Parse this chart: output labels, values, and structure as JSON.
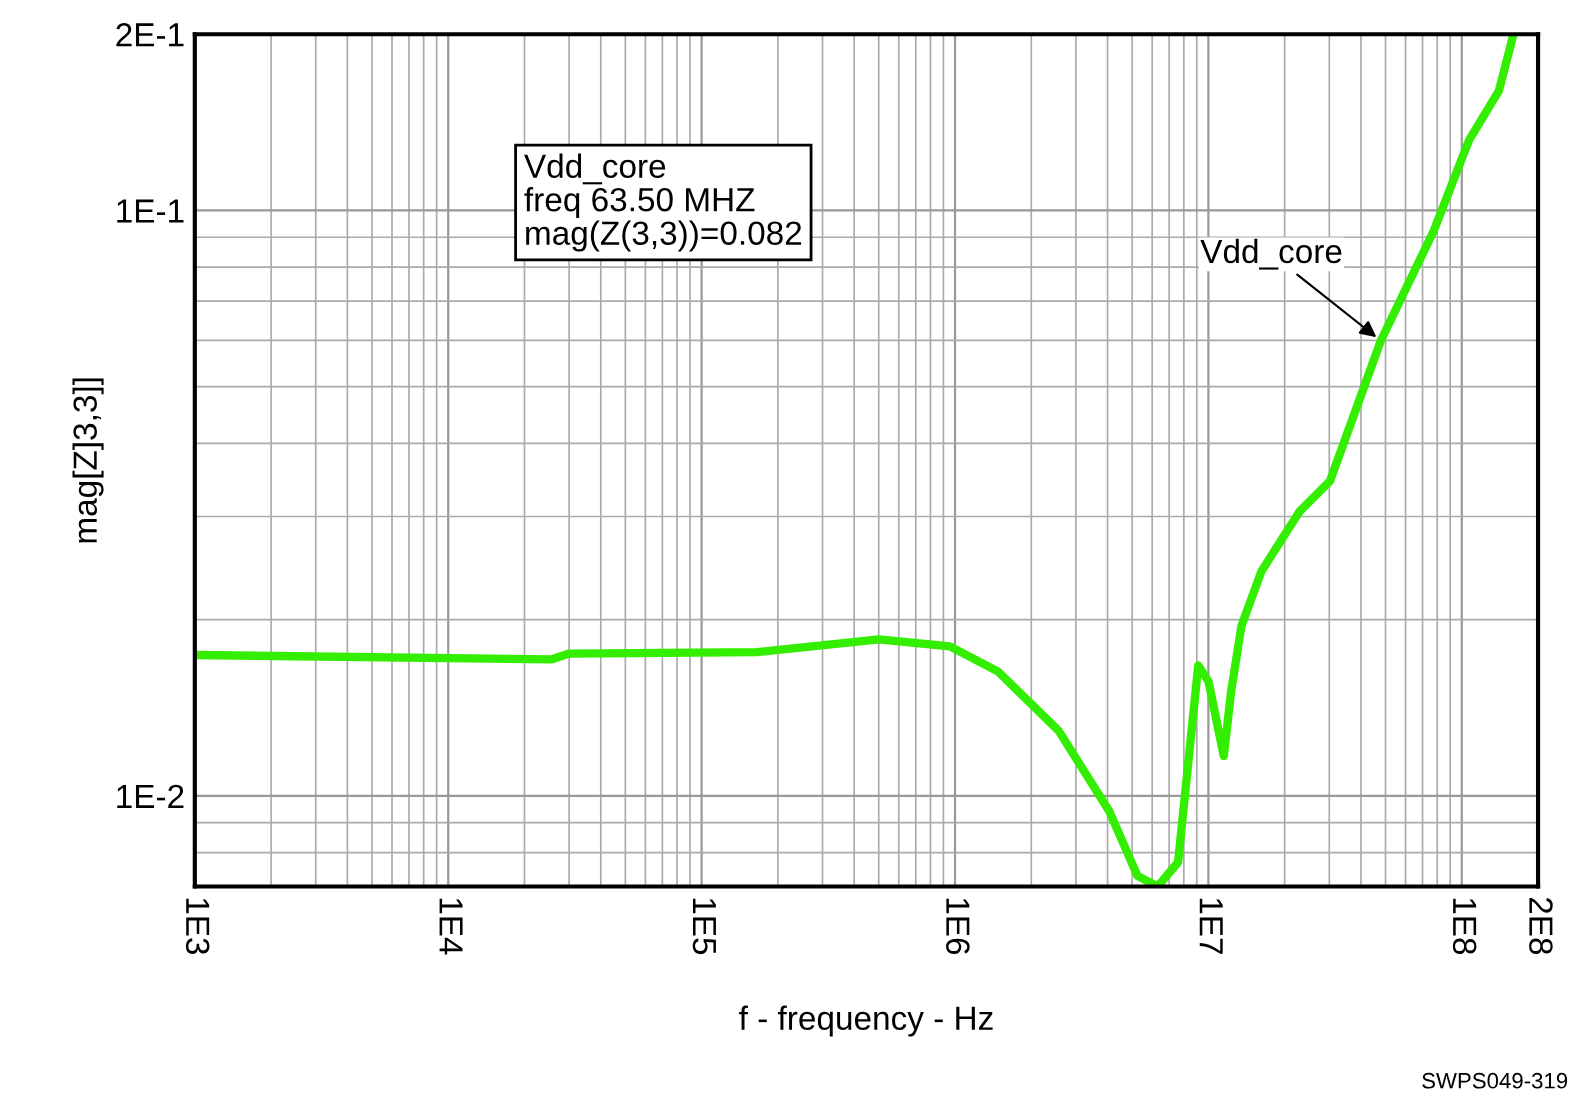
{
  "chart_data": {
    "type": "line",
    "xlabel": "f - frequency - Hz",
    "ylabel": "mag[Z]3,3]]",
    "log": "xy",
    "xlim": [
      1000,
      200000000
    ],
    "xticks": [
      {
        "value": 1000,
        "label": "1E3"
      },
      {
        "value": 10000,
        "label": "1E4"
      },
      {
        "value": 100000,
        "label": "1E5"
      },
      {
        "value": 1000000,
        "label": "1E6"
      },
      {
        "value": 10000000,
        "label": "1E7"
      },
      {
        "value": 100000000,
        "label": "1E8"
      },
      {
        "value": 200000000,
        "label": "2E8"
      }
    ],
    "ylim": [
      0.007,
      0.2
    ],
    "yticks": [
      {
        "value": 0.01,
        "label": "1E-2"
      },
      {
        "value": 0.1,
        "label": "1E-1"
      },
      {
        "value": 0.2,
        "label": "2E-1"
      }
    ],
    "grid": true,
    "legend": false,
    "marker": "none",
    "line_style": "solid",
    "series": [
      {
        "name": "Vdd_core",
        "color": "#33ee00",
        "x": [
          1000,
          25500,
          30000,
          166000,
          500000,
          955000,
          1480000,
          2570000,
          4070000,
          5250000,
          6310000,
          7590000,
          9120000,
          10000000,
          11500000,
          12300000,
          13500000,
          16200000,
          22900000,
          30200000,
          47900000,
          77600000,
          107000000,
          140000000,
          160000000
        ],
        "values": [
          0.0174,
          0.0171,
          0.0175,
          0.0176,
          0.0185,
          0.018,
          0.0163,
          0.0129,
          0.0094,
          0.0073,
          0.007,
          0.0077,
          0.0167,
          0.0157,
          0.0117,
          0.0151,
          0.0195,
          0.0242,
          0.0306,
          0.0345,
          0.0599,
          0.0924,
          0.132,
          0.16,
          0.2
        ]
      }
    ],
    "annotations": [
      "Vdd_core\nfreq 63.50 MHZ\nmag(Z(3,3))=0.082",
      "SWPS049-319"
    ]
  }
}
